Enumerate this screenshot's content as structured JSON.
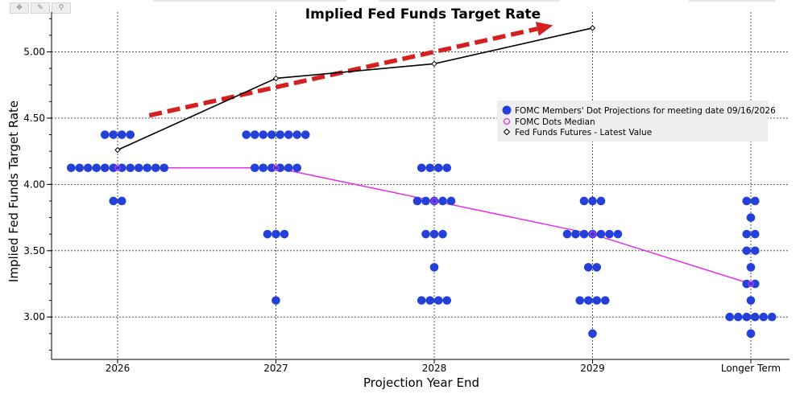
{
  "toolbar": {
    "items": [
      {
        "icon": "move-icon",
        "glyph": "✥"
      },
      {
        "icon": "pencil-icon",
        "glyph": "✎"
      },
      {
        "icon": "magnifier-icon",
        "glyph": "⚲"
      }
    ]
  },
  "chart_data": {
    "type": "scatter",
    "title": "Implied Fed Funds Target Rate",
    "xlabel": "Projection Year End",
    "ylabel": "Implied Fed Funds Target Rate",
    "categories": [
      "2026",
      "2027",
      "2028",
      "2029",
      "Longer Term"
    ],
    "ylim": [
      2.68,
      5.3
    ],
    "yticks": [
      3.0,
      3.5,
      4.0,
      4.5,
      5.0
    ],
    "ytick_labels": [
      "3.00",
      "3.50",
      "4.00",
      "4.50",
      "5.00"
    ],
    "grid": true,
    "legend_position": "right",
    "colors": {
      "dots": "#2340d8",
      "median": "#e62ee6",
      "futures": "#000000",
      "arrow": "#d42020",
      "grid": "#555555"
    },
    "series": [
      {
        "name": "FOMC Members' Dot Projections for meeting date 09/16/2026",
        "kind": "dots",
        "points": [
          {
            "category": "2026",
            "y": 4.375,
            "count": 4
          },
          {
            "category": "2026",
            "y": 4.125,
            "count": 12
          },
          {
            "category": "2026",
            "y": 3.875,
            "count": 2
          },
          {
            "category": "2027",
            "y": 4.375,
            "count": 8
          },
          {
            "category": "2027",
            "y": 4.125,
            "count": 6
          },
          {
            "category": "2027",
            "y": 3.625,
            "count": 3
          },
          {
            "category": "2027",
            "y": 3.125,
            "count": 1
          },
          {
            "category": "2028",
            "y": 4.125,
            "count": 4
          },
          {
            "category": "2028",
            "y": 3.875,
            "count": 5
          },
          {
            "category": "2028",
            "y": 3.625,
            "count": 3
          },
          {
            "category": "2028",
            "y": 3.375,
            "count": 1
          },
          {
            "category": "2028",
            "y": 3.125,
            "count": 4
          },
          {
            "category": "2029",
            "y": 3.875,
            "count": 3
          },
          {
            "category": "2029",
            "y": 3.625,
            "count": 7
          },
          {
            "category": "2029",
            "y": 3.375,
            "count": 2
          },
          {
            "category": "2029",
            "y": 3.125,
            "count": 4
          },
          {
            "category": "2029",
            "y": 2.875,
            "count": 1
          },
          {
            "category": "Longer Term",
            "y": 3.875,
            "count": 2
          },
          {
            "category": "Longer Term",
            "y": 3.75,
            "count": 1
          },
          {
            "category": "Longer Term",
            "y": 3.625,
            "count": 2
          },
          {
            "category": "Longer Term",
            "y": 3.5,
            "count": 2
          },
          {
            "category": "Longer Term",
            "y": 3.375,
            "count": 1
          },
          {
            "category": "Longer Term",
            "y": 3.25,
            "count": 2
          },
          {
            "category": "Longer Term",
            "y": 3.125,
            "count": 1
          },
          {
            "category": "Longer Term",
            "y": 3.0,
            "count": 6
          },
          {
            "category": "Longer Term",
            "y": 2.875,
            "count": 1
          }
        ]
      },
      {
        "name": "FOMC Dots Median",
        "kind": "line",
        "x": [
          "2026",
          "2027",
          "2028",
          "2029",
          "Longer Term"
        ],
        "values": [
          4.125,
          4.125,
          3.875,
          3.625,
          3.25
        ]
      },
      {
        "name": "Fed Funds Futures - Latest Value",
        "kind": "line",
        "x": [
          "2026",
          "2027",
          "2028",
          "2029"
        ],
        "values": [
          4.26,
          4.8,
          4.91,
          5.18
        ]
      }
    ],
    "annotations": [
      {
        "type": "arrow",
        "style": "dashed",
        "from": {
          "x": 0.2,
          "y": 4.52
        },
        "to": {
          "x": 2.75,
          "y": 5.2
        }
      }
    ]
  }
}
